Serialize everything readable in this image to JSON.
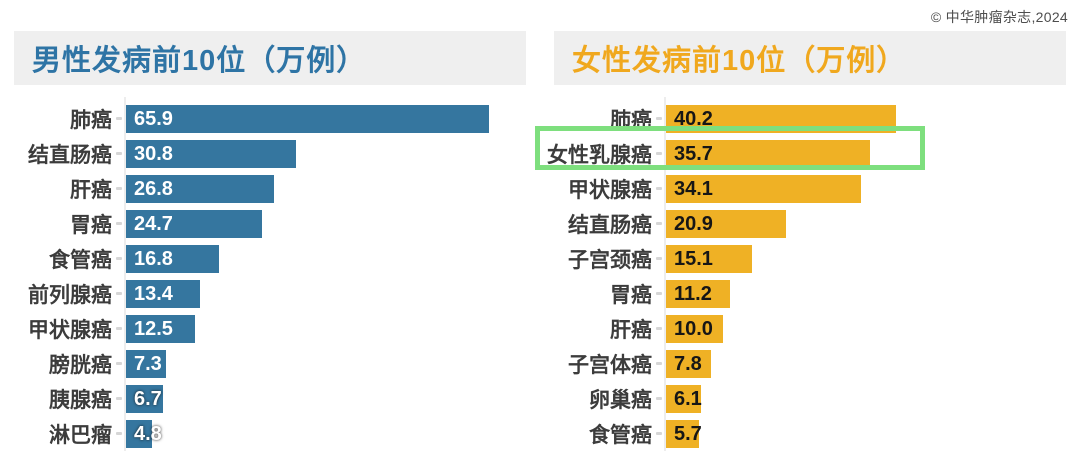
{
  "copyright": "© 中华肿瘤杂志,2024",
  "chart_data": [
    {
      "type": "bar",
      "orientation": "horizontal",
      "title": "男性发病前10位（万例）",
      "unit": "万例",
      "categories": [
        "肺癌",
        "结直肠癌",
        "肝癌",
        "胃癌",
        "食管癌",
        "前列腺癌",
        "甲状腺癌",
        "膀胱癌",
        "胰腺癌",
        "淋巴瘤"
      ],
      "values": [
        65.9,
        30.8,
        26.8,
        24.7,
        16.8,
        13.4,
        12.5,
        7.3,
        6.7,
        4.8
      ],
      "value_labels": [
        "65.9",
        "30.8",
        "26.8",
        "24.7",
        "16.8",
        "13.4",
        "12.5",
        "7.3",
        "6.7",
        "4.8"
      ],
      "bar_color": "#35769f",
      "title_color": "#2e74a5",
      "value_label_color": "#ffffff",
      "xlabel": "",
      "ylabel": "",
      "grid": false,
      "legend": false
    },
    {
      "type": "bar",
      "orientation": "horizontal",
      "title": "女性发病前10位（万例）",
      "unit": "万例",
      "categories": [
        "肺癌",
        "女性乳腺癌",
        "甲状腺癌",
        "结直肠癌",
        "子宫颈癌",
        "胃癌",
        "肝癌",
        "子宫体癌",
        "卵巢癌",
        "食管癌"
      ],
      "values": [
        40.2,
        35.7,
        34.1,
        20.9,
        15.1,
        11.2,
        10.0,
        7.8,
        6.1,
        5.7
      ],
      "value_labels": [
        "40.2",
        "35.7",
        "34.1",
        "20.9",
        "15.1",
        "11.2",
        "10.0",
        "7.8",
        "6.1",
        "5.7"
      ],
      "bar_color": "#efb125",
      "title_color": "#f0a81e",
      "value_label_color": "#161616",
      "xlabel": "",
      "ylabel": "",
      "grid": false,
      "legend": false,
      "highlight": {
        "index": 1,
        "category": "女性乳腺癌",
        "border_color": "#7edf7e"
      }
    }
  ]
}
